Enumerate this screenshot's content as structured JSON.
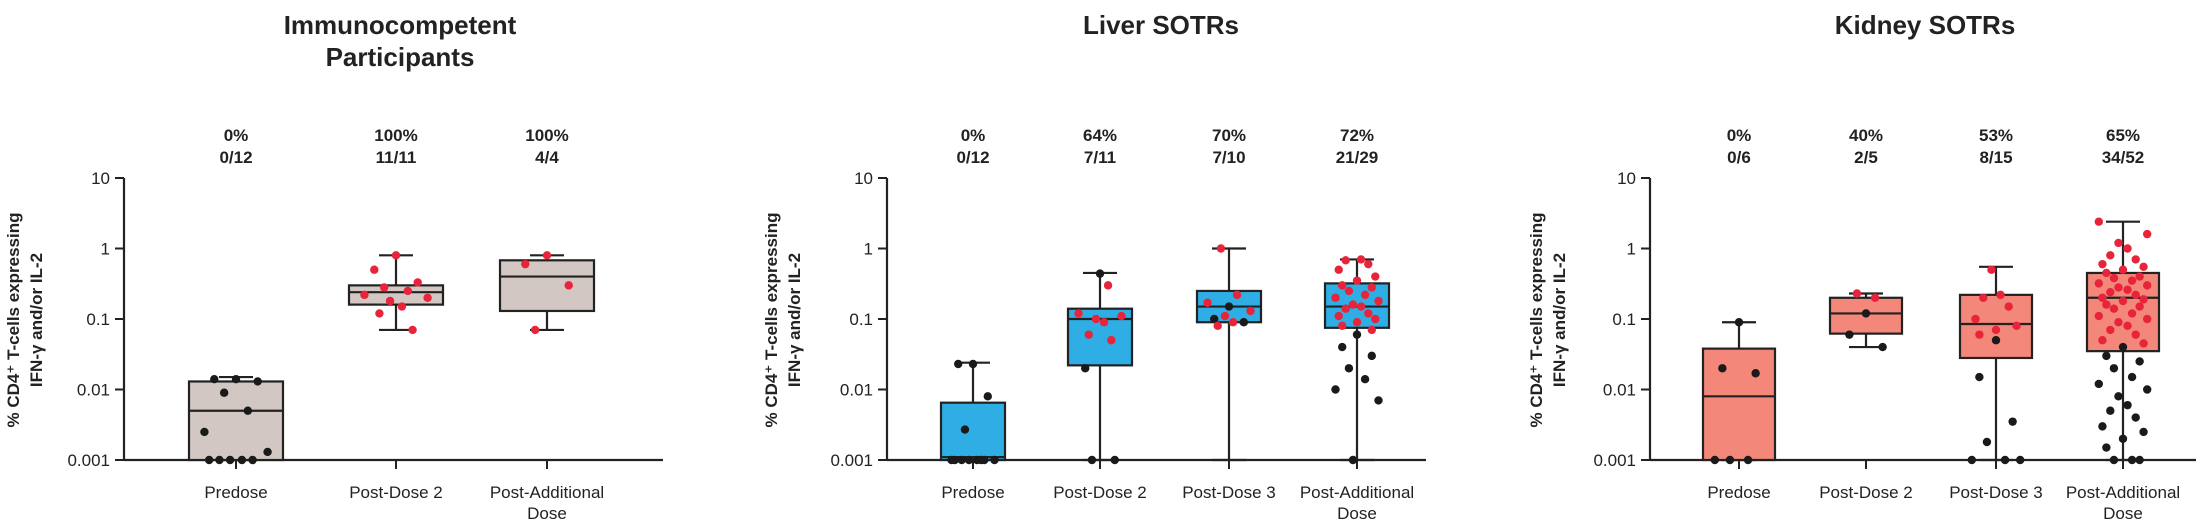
{
  "chart_data": [
    {
      "type": "box",
      "title": [
        "Immunocompetent",
        "Participants"
      ],
      "ylabel": [
        "% CD4⁺ T-cells expressing",
        "IFN-γ and/or IL-2"
      ],
      "yscale": "log",
      "ylim": [
        0.001,
        10
      ],
      "yticks": [
        "10",
        "1",
        "0.1",
        "0.01",
        "0.001"
      ],
      "box_color": "#d3c7c3",
      "categories": [
        {
          "label": [
            "Predose"
          ],
          "percent": "0%",
          "fraction": "0/12",
          "whisker_low": 0.001,
          "q1": 0.001,
          "median": 0.005,
          "q3": 0.013,
          "whisker_high": 0.015,
          "points_black": [
            0.014,
            0.014,
            0.013,
            0.009,
            0.005,
            0.0025,
            0.0013,
            0.001,
            0.001,
            0.001,
            0.001,
            0.001
          ],
          "points_red": []
        },
        {
          "label": [
            "Post-Dose 2"
          ],
          "percent": "100%",
          "fraction": "11/11",
          "whisker_low": 0.07,
          "q1": 0.16,
          "median": 0.24,
          "q3": 0.3,
          "whisker_high": 0.8,
          "points_black": [],
          "points_red": [
            0.8,
            0.5,
            0.33,
            0.28,
            0.25,
            0.22,
            0.2,
            0.18,
            0.15,
            0.12,
            0.07
          ]
        },
        {
          "label": [
            "Post-Additional",
            "Dose"
          ],
          "percent": "100%",
          "fraction": "4/4",
          "whisker_low": 0.07,
          "q1": 0.13,
          "median": 0.4,
          "q3": 0.68,
          "whisker_high": 0.8,
          "points_black": [],
          "points_red": [
            0.8,
            0.6,
            0.3,
            0.07
          ]
        }
      ]
    },
    {
      "type": "box",
      "title": [
        "Liver SOTRs"
      ],
      "ylabel": [
        "% CD4⁺ T-cells expressing",
        "IFN-γ and/or IL-2"
      ],
      "yscale": "log",
      "ylim": [
        0.001,
        10
      ],
      "yticks": [
        "10",
        "1",
        "0.1",
        "0.01",
        "0.001"
      ],
      "box_color": "#2eaee4",
      "categories": [
        {
          "label": [
            "Predose"
          ],
          "percent": "0%",
          "fraction": "0/12",
          "whisker_low": 0.001,
          "q1": 0.001,
          "median": 0.0011,
          "q3": 0.0065,
          "whisker_high": 0.024,
          "points_black": [
            0.023,
            0.023,
            0.008,
            0.0027,
            0.001,
            0.001,
            0.001,
            0.001,
            0.001,
            0.001,
            0.001,
            0.001
          ],
          "points_red": []
        },
        {
          "label": [
            "Post-Dose 2"
          ],
          "percent": "64%",
          "fraction": "7/11",
          "whisker_low": 0.001,
          "q1": 0.022,
          "median": 0.1,
          "q3": 0.14,
          "whisker_high": 0.45,
          "points_black": [
            0.44,
            0.02,
            0.001,
            0.001
          ],
          "points_red": [
            0.3,
            0.12,
            0.11,
            0.1,
            0.09,
            0.06,
            0.05
          ]
        },
        {
          "label": [
            "Post-Dose 3"
          ],
          "percent": "70%",
          "fraction": "7/10",
          "whisker_low": 0.001,
          "q1": 0.09,
          "median": 0.15,
          "q3": 0.25,
          "whisker_high": 1.0,
          "points_black": [
            0.15,
            0.1,
            0.09
          ],
          "points_red": [
            1.0,
            0.22,
            0.17,
            0.13,
            0.11,
            0.09,
            0.08
          ]
        },
        {
          "label": [
            "Post-Additional",
            "Dose"
          ],
          "percent": "72%",
          "fraction": "21/29",
          "whisker_low": 0.001,
          "q1": 0.075,
          "median": 0.15,
          "q3": 0.32,
          "whisker_high": 0.7,
          "points_black": [
            0.06,
            0.04,
            0.03,
            0.02,
            0.014,
            0.01,
            0.007,
            0.001
          ],
          "points_red": [
            0.7,
            0.68,
            0.6,
            0.5,
            0.4,
            0.35,
            0.3,
            0.28,
            0.25,
            0.22,
            0.2,
            0.18,
            0.16,
            0.15,
            0.14,
            0.12,
            0.11,
            0.1,
            0.09,
            0.08,
            0.07
          ]
        }
      ]
    },
    {
      "type": "box",
      "title": [
        "Kidney SOTRs"
      ],
      "ylabel": [
        "% CD4⁺ T-cells expressing",
        "IFN-γ and/or IL-2"
      ],
      "yscale": "log",
      "ylim": [
        0.001,
        10
      ],
      "yticks": [
        "10",
        "1",
        "0.1",
        "0.01",
        "0.001"
      ],
      "box_color": "#f2877a",
      "categories": [
        {
          "label": [
            "Predose"
          ],
          "percent": "0%",
          "fraction": "0/6",
          "whisker_low": 0.001,
          "q1": 0.001,
          "median": 0.008,
          "q3": 0.038,
          "whisker_high": 0.09,
          "points_black": [
            0.09,
            0.02,
            0.017,
            0.001,
            0.001,
            0.001
          ],
          "points_red": []
        },
        {
          "label": [
            "Post-Dose 2"
          ],
          "percent": "40%",
          "fraction": "2/5",
          "whisker_low": 0.04,
          "q1": 0.062,
          "median": 0.12,
          "q3": 0.2,
          "whisker_high": 0.23,
          "points_black": [
            0.12,
            0.06,
            0.04
          ],
          "points_red": [
            0.23,
            0.2
          ]
        },
        {
          "label": [
            "Post-Dose 3"
          ],
          "percent": "53%",
          "fraction": "8/15",
          "whisker_low": 0.001,
          "q1": 0.028,
          "median": 0.085,
          "q3": 0.22,
          "whisker_high": 0.55,
          "points_black": [
            0.05,
            0.015,
            0.0035,
            0.0018,
            0.001,
            0.001,
            0.001
          ],
          "points_red": [
            0.5,
            0.22,
            0.2,
            0.15,
            0.1,
            0.08,
            0.07,
            0.06
          ]
        },
        {
          "label": [
            "Post-Additional",
            "Dose"
          ],
          "percent": "65%",
          "fraction": "34/52",
          "whisker_low": 0.001,
          "q1": 0.035,
          "median": 0.2,
          "q3": 0.45,
          "whisker_high": 2.4,
          "points_black": [
            0.04,
            0.03,
            0.025,
            0.02,
            0.015,
            0.012,
            0.01,
            0.008,
            0.006,
            0.005,
            0.004,
            0.003,
            0.0025,
            0.002,
            0.0015,
            0.001,
            0.001,
            0.001
          ],
          "points_red": [
            2.4,
            1.6,
            1.2,
            1.0,
            0.8,
            0.7,
            0.6,
            0.55,
            0.5,
            0.45,
            0.4,
            0.38,
            0.35,
            0.32,
            0.3,
            0.28,
            0.26,
            0.24,
            0.22,
            0.2,
            0.19,
            0.18,
            0.16,
            0.15,
            0.14,
            0.12,
            0.11,
            0.1,
            0.09,
            0.08,
            0.07,
            0.06,
            0.05,
            0.045
          ]
        }
      ]
    }
  ]
}
